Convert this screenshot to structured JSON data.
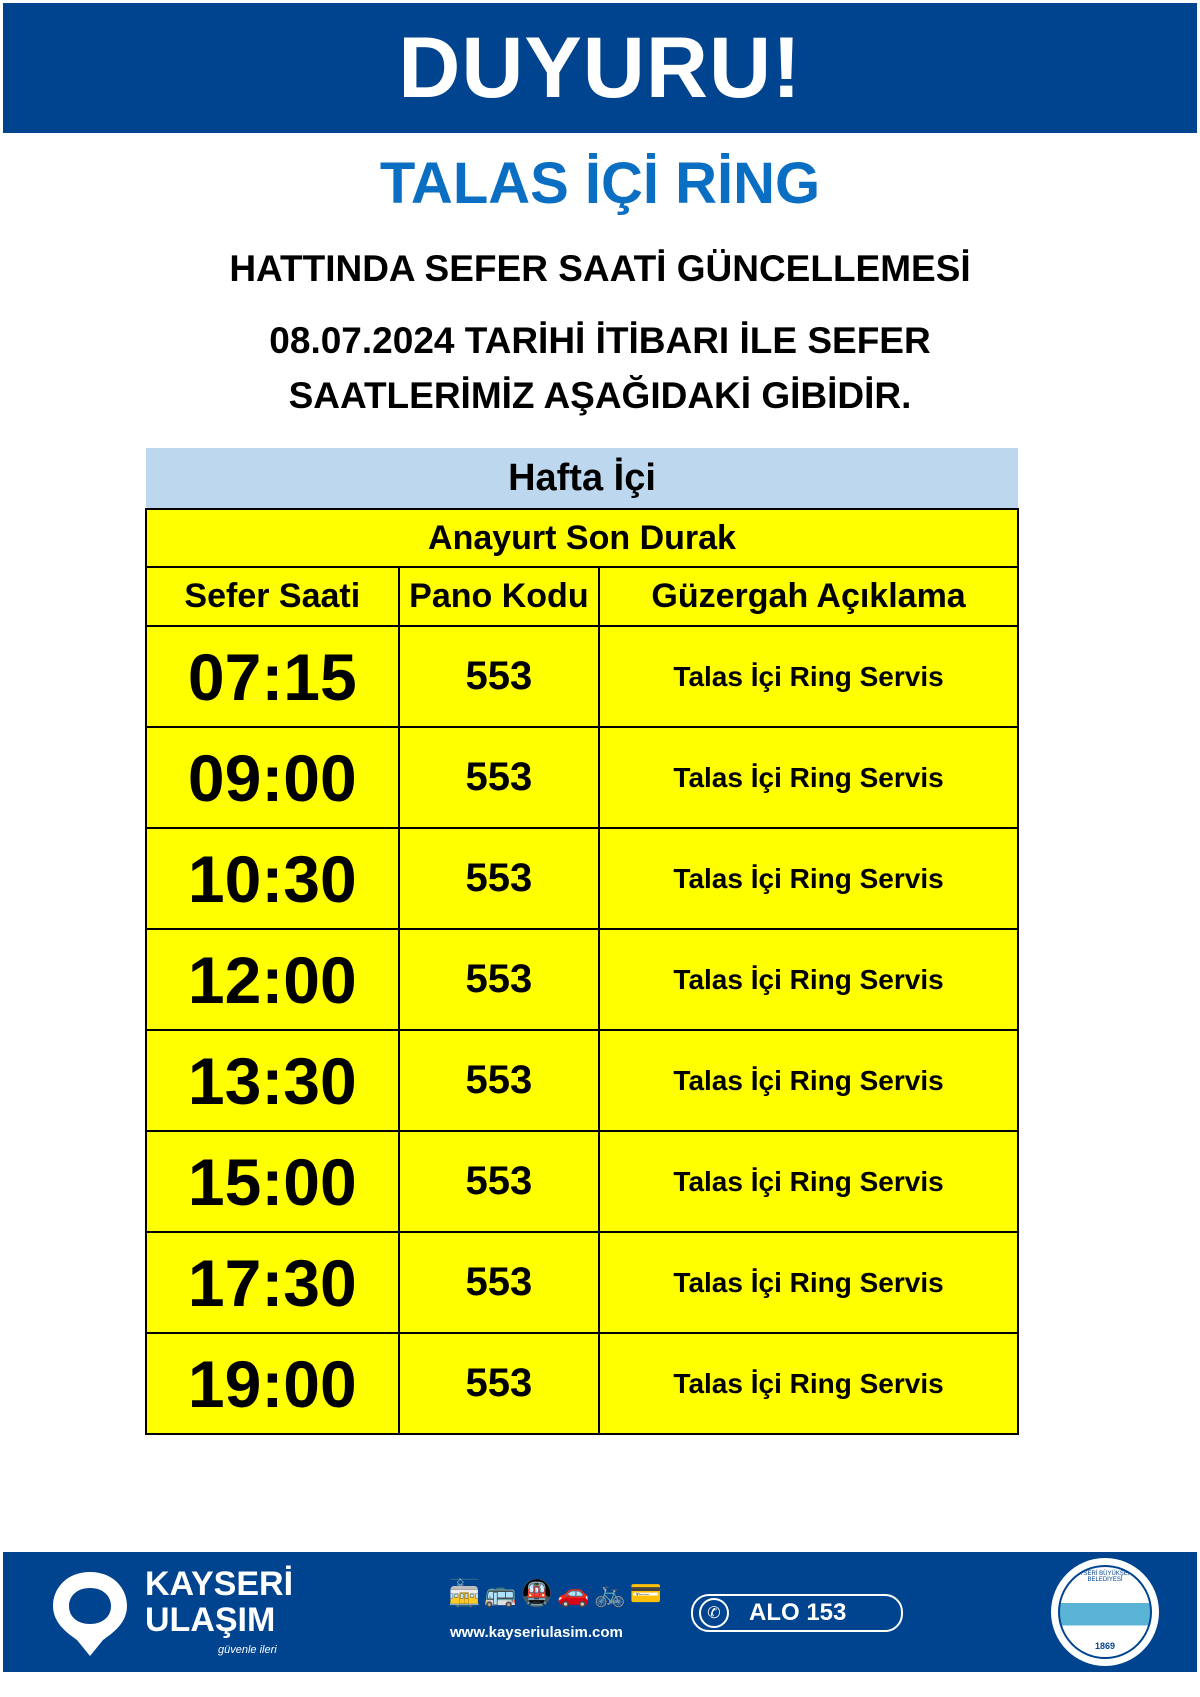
{
  "banner": {
    "title": "DUYURU!"
  },
  "route": {
    "name": "TALAS İÇİ RİNG"
  },
  "subtitle": "HATTINDA SEFER SAATİ GÜNCELLEMESİ",
  "notice": {
    "line1": "08.07.2024 TARİHİ İTİBARI İLE SEFER",
    "line2": "SAATLERİMİZ AŞAĞIDAKİ GİBİDİR."
  },
  "schedule": {
    "day_type": "Hafta İçi",
    "stop": "Anayurt Son Durak",
    "columns": [
      "Sefer Saati",
      "Pano Kodu",
      "Güzergah Açıklama"
    ],
    "rows": [
      {
        "time": "07:15",
        "code": "553",
        "desc": "Talas İçi Ring Servis"
      },
      {
        "time": "09:00",
        "code": "553",
        "desc": "Talas İçi Ring Servis"
      },
      {
        "time": "10:30",
        "code": "553",
        "desc": "Talas İçi Ring Servis"
      },
      {
        "time": "12:00",
        "code": "553",
        "desc": "Talas İçi Ring Servis"
      },
      {
        "time": "13:30",
        "code": "553",
        "desc": "Talas İçi Ring Servis"
      },
      {
        "time": "15:00",
        "code": "553",
        "desc": "Talas İçi Ring Servis"
      },
      {
        "time": "17:30",
        "code": "553",
        "desc": "Talas İçi Ring Servis"
      },
      {
        "time": "19:00",
        "code": "553",
        "desc": "Talas İçi Ring Servis"
      }
    ]
  },
  "footer": {
    "brand_line1": "KAYSERİ",
    "brand_line2": "ULAŞIM",
    "slogan": "güvenle ileri",
    "website": "www.kayseriulasim.com",
    "hotline": "ALO 153",
    "seal_text": "KAYSERİ BÜYÜKŞEHİR BELEDİYESİ",
    "seal_year": "1869",
    "transport_icons": [
      "tram-icon",
      "bus-icon",
      "metro-icon",
      "parking-car-icon",
      "bicycle-icon",
      "card-tap-icon"
    ]
  },
  "colors": {
    "brand_blue": "#00438f",
    "title_blue": "#0a6fc2",
    "table_yellow": "#ffff00",
    "header_lightblue": "#bdd7ee"
  }
}
